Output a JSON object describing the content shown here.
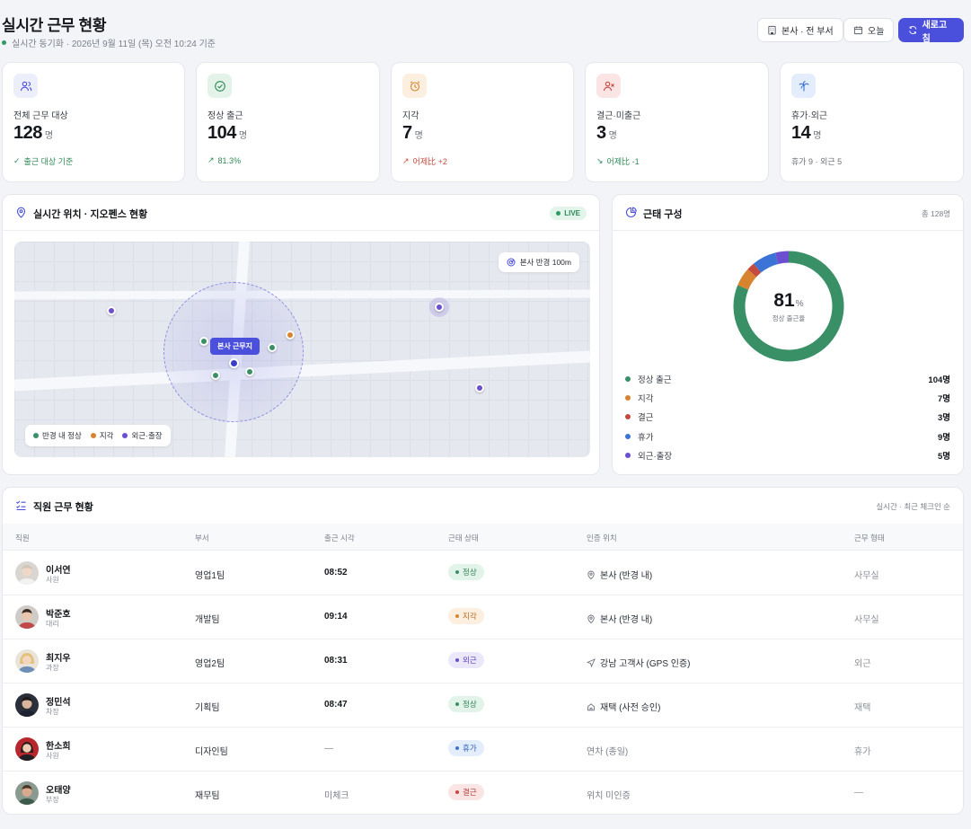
{
  "header": {
    "title": "실시간 근무 현황",
    "subtitle": "실시간 동기화 · 2026년 9월 11일 (목) 오전 10:24 기준",
    "btn_scope": "본사 · 전 부서",
    "btn_date": "오늘",
    "btn_refresh": "새로고침"
  },
  "stats": [
    {
      "label": "전체 근무 대상",
      "value": "128",
      "unit": "명",
      "foot": "출근 대상 기준",
      "foot_color": "#2f8a57",
      "icon": "users-icon",
      "tint": "#eceefb",
      "ic_color": "#4a4fdc"
    },
    {
      "label": "정상 출근",
      "value": "104",
      "unit": "명",
      "foot": "81.3%",
      "foot_color": "#2f8a57",
      "icon": "check-circle-icon",
      "tint": "#e4f3ea",
      "ic_color": "#2f8a57"
    },
    {
      "label": "지각",
      "value": "7",
      "unit": "명",
      "foot": "어제比 +2",
      "foot_color": "#c54a3f",
      "icon": "alarm-clock-icon",
      "tint": "#fcefdf",
      "ic_color": "#d78430"
    },
    {
      "label": "결근·미출근",
      "value": "3",
      "unit": "명",
      "foot": "어제比 -1",
      "foot_color": "#2f8a57",
      "icon": "user-x-icon",
      "tint": "#fbe5e4",
      "ic_color": "#c54a3f"
    },
    {
      "label": "휴가·외근",
      "value": "14",
      "unit": "명",
      "foot": "휴가 9 · 외근 5",
      "foot_color": "#6b707a",
      "icon": "palm-tree-icon",
      "tint": "#e3edfb",
      "ic_color": "#3b74d6"
    }
  ],
  "map_panel": {
    "title": "실시간 위치 · 지오펜스 현황",
    "live": "LIVE",
    "radius_chip": "본사 반경 100m",
    "hq_label": "본사 근무지",
    "legend": [
      {
        "label": "반경 내 정상",
        "color": "#3a9066"
      },
      {
        "label": "지각",
        "color": "#d78430"
      },
      {
        "label": "외근·출장",
        "color": "#6b4fd0"
      }
    ]
  },
  "composition": {
    "title": "근태 구성",
    "total": "총 128명",
    "center_value": "81",
    "center_unit": "%",
    "center_label": "정상 출근율",
    "chart_data": {
      "type": "pie",
      "categories": [
        "정상 출근",
        "지각",
        "결근",
        "휴가",
        "외근·출장"
      ],
      "values": [
        104,
        7,
        3,
        9,
        5
      ],
      "colors": [
        "#3a9066",
        "#d78430",
        "#c54a3f",
        "#3b74d6",
        "#6b4fd0"
      ]
    },
    "legend": [
      {
        "name": "정상 출근",
        "count": "104명",
        "color": "#3a9066"
      },
      {
        "name": "지각",
        "count": "7명",
        "color": "#d78430"
      },
      {
        "name": "결근",
        "count": "3명",
        "color": "#c54a3f"
      },
      {
        "name": "휴가",
        "count": "9명",
        "color": "#3b74d6"
      },
      {
        "name": "외근·출장",
        "count": "5명",
        "color": "#6b4fd0"
      }
    ]
  },
  "table": {
    "title": "직원 근무 현황",
    "sort_note": "실시간 · 최근 체크인 순",
    "columns": [
      "직원",
      "부서",
      "출근 시각",
      "근태 상태",
      "인증 위치",
      "근무 형태"
    ],
    "rows": [
      {
        "name": "이서연",
        "rank": "사원",
        "dept": "영업1팀",
        "time": "08:52",
        "status": "정상",
        "status_kind": "normal",
        "loc": "본사 (반경 내)",
        "loc_icon": "map-pin-icon",
        "type": "사무실"
      },
      {
        "name": "박준호",
        "rank": "대리",
        "dept": "개발팀",
        "time": "09:14",
        "status": "지각",
        "status_kind": "late",
        "loc": "본사 (반경 내)",
        "loc_icon": "map-pin-icon",
        "type": "사무실"
      },
      {
        "name": "최지우",
        "rank": "과장",
        "dept": "영업2팀",
        "time": "08:31",
        "status": "외근",
        "status_kind": "out",
        "loc": "강남 고객사 (GPS 인증)",
        "loc_icon": "navigation-icon",
        "type": "외근"
      },
      {
        "name": "정민석",
        "rank": "차장",
        "dept": "기획팀",
        "time": "08:47",
        "status": "정상",
        "status_kind": "normal",
        "loc": "재택 (사전 승인)",
        "loc_icon": "home-icon",
        "type": "재택"
      },
      {
        "name": "한소희",
        "rank": "사원",
        "dept": "디자인팀",
        "time": "—",
        "status": "휴가",
        "status_kind": "leave",
        "loc": "연차 (종일)",
        "loc_icon": "",
        "type": "휴가"
      },
      {
        "name": "오태양",
        "rank": "부장",
        "dept": "재무팀",
        "time": "미체크",
        "status": "결근",
        "status_kind": "absent",
        "loc": "위치 미인증",
        "loc_icon": "",
        "type": "—"
      }
    ]
  }
}
